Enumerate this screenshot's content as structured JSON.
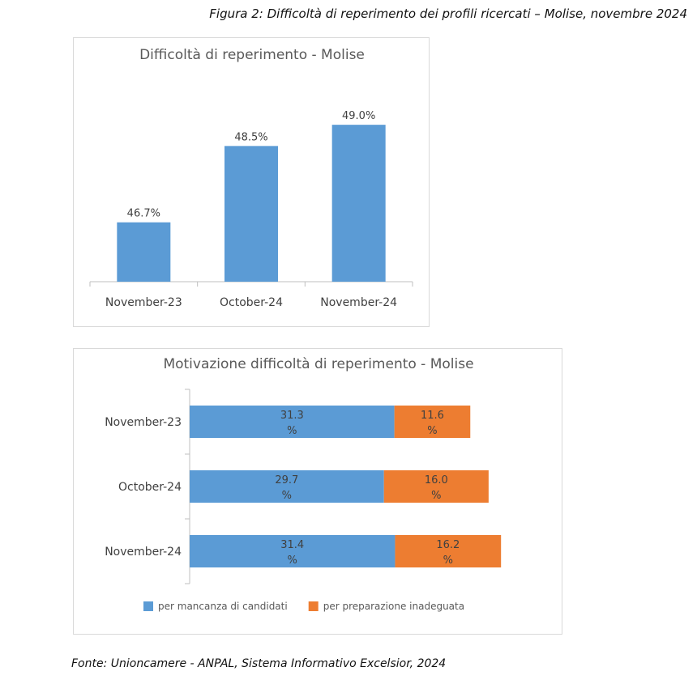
{
  "figure": {
    "title": "Figura 2: Difficoltà di reperimento dei profili ricercati – Molise, novembre 2024",
    "source": "Fonte: Unioncamere - ANPAL, Sistema Informativo Excelsior, 2024"
  },
  "colors": {
    "blue": "#5b9bd5",
    "orange": "#ed7d31",
    "axis": "#bfbfbf"
  },
  "chart_data": [
    {
      "type": "bar",
      "title": "Difficoltà di reperimento - Molise",
      "categories": [
        "November-23",
        "October-24",
        "November-24"
      ],
      "values": [
        46.7,
        48.5,
        49.0
      ],
      "value_labels": [
        "46.7%",
        "48.5%",
        "49.0%"
      ],
      "ylim": [
        45.3,
        49.9
      ],
      "grid": false,
      "legend": "none"
    },
    {
      "type": "bar",
      "orientation": "horizontal",
      "stacked": true,
      "title": "Motivazione difficoltà di reperimento - Molise",
      "categories": [
        "November-23",
        "October-24",
        "November-24"
      ],
      "xlim": [
        0,
        56
      ],
      "grid": false,
      "legend": "bottom",
      "series": [
        {
          "name": "per mancanza di candidati",
          "values": [
            31.3,
            29.7,
            31.4
          ],
          "labels": [
            "31.3",
            "29.7",
            "31.4"
          ],
          "unit": "%"
        },
        {
          "name": "per preparazione inadeguata",
          "values": [
            11.6,
            16.0,
            16.2
          ],
          "labels": [
            "11.6",
            "16.0",
            "16.2"
          ],
          "unit": "%"
        }
      ]
    }
  ]
}
